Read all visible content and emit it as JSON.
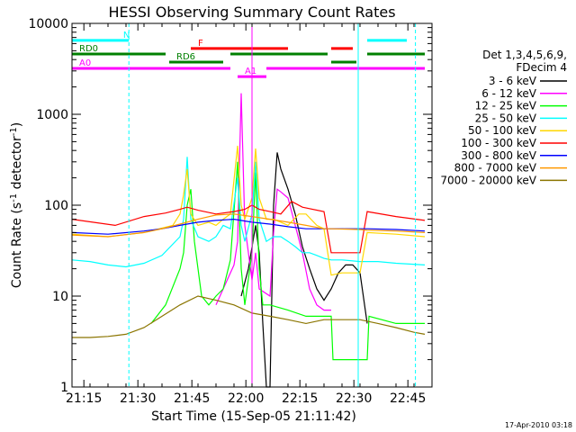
{
  "chart_data": {
    "type": "line",
    "title": "HESSI Observing Summary Count Rates",
    "xlabel": "Start Time (15-Sep-05 21:11:42)",
    "ylabel_main": "Count Rate (s",
    "ylabel_sup1": "-1",
    "ylabel_mid": " detector",
    "ylabel_sup2": "-1",
    "ylabel_end": ")",
    "y_scale": "log",
    "ylim": [
      1,
      10000
    ],
    "xlim_minutes": [
      0,
      100
    ],
    "x_ticks": [
      {
        "m": 3.3,
        "label": "21:15"
      },
      {
        "m": 18.3,
        "label": "21:30"
      },
      {
        "m": 33.3,
        "label": "21:45"
      },
      {
        "m": 48.3,
        "label": "22:00"
      },
      {
        "m": 63.3,
        "label": "22:15"
      },
      {
        "m": 78.3,
        "label": "22:30"
      },
      {
        "m": 93.3,
        "label": "22:45"
      }
    ],
    "y_ticks": [
      {
        "v": 1,
        "label": "1"
      },
      {
        "v": 10,
        "label": "10"
      },
      {
        "v": 100,
        "label": "100"
      },
      {
        "v": 1000,
        "label": "1000"
      },
      {
        "v": 10000,
        "label": "10000"
      }
    ],
    "legend_header": [
      "Det 1,3,4,5,6,9,",
      "FDecim 4"
    ],
    "legend_position": "right",
    "series": [
      {
        "name": "3 - 6 keV",
        "color": "#000000",
        "points": [
          [
            47,
            10
          ],
          [
            49,
            20
          ],
          [
            51,
            60
          ],
          [
            52,
            30
          ],
          [
            53,
            5
          ],
          [
            54,
            1
          ],
          [
            55,
            1
          ],
          [
            56,
            100
          ],
          [
            57,
            380
          ],
          [
            58,
            250
          ],
          [
            60,
            150
          ],
          [
            62,
            80
          ],
          [
            64,
            35
          ],
          [
            66,
            20
          ],
          [
            68,
            12
          ],
          [
            70,
            9
          ],
          [
            72,
            12
          ],
          [
            74,
            18
          ],
          [
            76,
            22
          ],
          [
            78,
            22
          ],
          [
            80,
            18
          ],
          [
            82,
            5
          ]
        ]
      },
      {
        "name": "6 - 12 keV",
        "color": "#ff00ff",
        "points": [
          [
            40,
            8
          ],
          [
            42,
            12
          ],
          [
            44,
            18
          ],
          [
            45,
            22
          ],
          [
            46,
            40
          ],
          [
            47,
            1700
          ],
          [
            48,
            60
          ],
          [
            49,
            30
          ],
          [
            50,
            15
          ],
          [
            51,
            30
          ],
          [
            52,
            12
          ],
          [
            55,
            10
          ],
          [
            56,
            50
          ],
          [
            57,
            150
          ],
          [
            58,
            140
          ],
          [
            60,
            120
          ],
          [
            62,
            60
          ],
          [
            64,
            30
          ],
          [
            66,
            12
          ],
          [
            68,
            8
          ],
          [
            70,
            7
          ],
          [
            72,
            7
          ]
        ]
      },
      {
        "name": "12 - 25 keV",
        "color": "#00ff00",
        "points": [
          [
            22,
            5
          ],
          [
            26,
            8
          ],
          [
            30,
            20
          ],
          [
            31,
            30
          ],
          [
            32,
            100
          ],
          [
            33,
            150
          ],
          [
            34,
            40
          ],
          [
            36,
            10
          ],
          [
            38,
            8
          ],
          [
            40,
            10
          ],
          [
            42,
            12
          ],
          [
            44,
            25
          ],
          [
            46,
            300
          ],
          [
            47,
            20
          ],
          [
            48,
            8
          ],
          [
            50,
            30
          ],
          [
            51,
            230
          ],
          [
            52,
            20
          ],
          [
            53,
            8
          ],
          [
            55,
            8
          ],
          [
            60,
            7
          ],
          [
            65,
            6
          ],
          [
            70,
            6
          ],
          [
            72,
            6
          ],
          [
            72.5,
            2
          ],
          [
            80,
            2
          ],
          [
            82,
            2
          ],
          [
            82.5,
            6
          ],
          [
            90,
            5
          ],
          [
            98,
            5
          ]
        ]
      },
      {
        "name": "25 - 50 keV",
        "color": "#00ffff",
        "points": [
          [
            0,
            25
          ],
          [
            5,
            24
          ],
          [
            10,
            22
          ],
          [
            15,
            21
          ],
          [
            20,
            23
          ],
          [
            25,
            28
          ],
          [
            30,
            45
          ],
          [
            31,
            70
          ],
          [
            32,
            340
          ],
          [
            33,
            70
          ],
          [
            35,
            45
          ],
          [
            38,
            40
          ],
          [
            40,
            45
          ],
          [
            42,
            60
          ],
          [
            44,
            55
          ],
          [
            46,
            200
          ],
          [
            47,
            60
          ],
          [
            48,
            40
          ],
          [
            50,
            80
          ],
          [
            51,
            300
          ],
          [
            52,
            70
          ],
          [
            54,
            40
          ],
          [
            56,
            45
          ],
          [
            58,
            45
          ],
          [
            60,
            40
          ],
          [
            62,
            35
          ],
          [
            64,
            30
          ],
          [
            66,
            30
          ],
          [
            68,
            28
          ],
          [
            70,
            26
          ],
          [
            72,
            25
          ],
          [
            75,
            25
          ],
          [
            80,
            24
          ],
          [
            85,
            24
          ],
          [
            90,
            23
          ],
          [
            98,
            22
          ]
        ]
      },
      {
        "name": "50 - 100 keV",
        "color": "#ffd700",
        "points": [
          [
            0,
            48
          ],
          [
            10,
            45
          ],
          [
            20,
            50
          ],
          [
            28,
            60
          ],
          [
            30,
            80
          ],
          [
            31,
            130
          ],
          [
            32,
            250
          ],
          [
            33,
            80
          ],
          [
            35,
            60
          ],
          [
            38,
            65
          ],
          [
            40,
            60
          ],
          [
            42,
            70
          ],
          [
            44,
            80
          ],
          [
            46,
            450
          ],
          [
            47,
            100
          ],
          [
            48,
            70
          ],
          [
            50,
            120
          ],
          [
            51,
            420
          ],
          [
            52,
            120
          ],
          [
            54,
            70
          ],
          [
            56,
            70
          ],
          [
            58,
            65
          ],
          [
            60,
            60
          ],
          [
            63,
            80
          ],
          [
            65,
            80
          ],
          [
            68,
            60
          ],
          [
            70,
            55
          ],
          [
            72,
            17
          ],
          [
            75,
            18
          ],
          [
            80,
            18
          ],
          [
            82,
            50
          ],
          [
            90,
            48
          ],
          [
            98,
            45
          ]
        ]
      },
      {
        "name": "100 - 300 keV",
        "color": "#ff0000",
        "points": [
          [
            0,
            70
          ],
          [
            12,
            60
          ],
          [
            20,
            75
          ],
          [
            26,
            82
          ],
          [
            30,
            90
          ],
          [
            32,
            95
          ],
          [
            35,
            88
          ],
          [
            40,
            80
          ],
          [
            45,
            85
          ],
          [
            48,
            90
          ],
          [
            50,
            100
          ],
          [
            52,
            90
          ],
          [
            55,
            85
          ],
          [
            58,
            80
          ],
          [
            61,
            110
          ],
          [
            64,
            95
          ],
          [
            70,
            85
          ],
          [
            72,
            30
          ],
          [
            80,
            30
          ],
          [
            82,
            85
          ],
          [
            90,
            75
          ],
          [
            98,
            68
          ]
        ]
      },
      {
        "name": "300 - 800 keV",
        "color": "#0000ff",
        "points": [
          [
            0,
            50
          ],
          [
            10,
            48
          ],
          [
            20,
            52
          ],
          [
            25,
            55
          ],
          [
            30,
            60
          ],
          [
            35,
            65
          ],
          [
            40,
            68
          ],
          [
            45,
            70
          ],
          [
            50,
            65
          ],
          [
            55,
            62
          ],
          [
            60,
            58
          ],
          [
            65,
            55
          ],
          [
            70,
            55
          ],
          [
            72,
            55
          ],
          [
            80,
            55
          ],
          [
            82,
            55
          ],
          [
            90,
            54
          ],
          [
            98,
            52
          ]
        ]
      },
      {
        "name": "800 - 7000 keV",
        "color": "#ff9900",
        "points": [
          [
            0,
            47
          ],
          [
            10,
            45
          ],
          [
            20,
            50
          ],
          [
            25,
            55
          ],
          [
            30,
            62
          ],
          [
            35,
            70
          ],
          [
            40,
            78
          ],
          [
            45,
            80
          ],
          [
            50,
            75
          ],
          [
            55,
            70
          ],
          [
            60,
            65
          ],
          [
            65,
            60
          ],
          [
            70,
            55
          ],
          [
            72,
            55
          ],
          [
            80,
            54
          ],
          [
            82,
            53
          ],
          [
            90,
            52
          ],
          [
            98,
            50
          ]
        ]
      },
      {
        "name": "7000 - 20000 keV",
        "color": "#8b7500",
        "points": [
          [
            0,
            3.5
          ],
          [
            5,
            3.5
          ],
          [
            10,
            3.6
          ],
          [
            15,
            3.8
          ],
          [
            20,
            4.5
          ],
          [
            25,
            6
          ],
          [
            30,
            8
          ],
          [
            35,
            10
          ],
          [
            40,
            9
          ],
          [
            45,
            8
          ],
          [
            50,
            6.5
          ],
          [
            55,
            6
          ],
          [
            60,
            5.5
          ],
          [
            65,
            5
          ],
          [
            70,
            5.5
          ],
          [
            75,
            5.5
          ],
          [
            80,
            5.5
          ],
          [
            85,
            5
          ],
          [
            90,
            4.5
          ],
          [
            95,
            4
          ],
          [
            98,
            3.8
          ]
        ]
      }
    ],
    "flags": [
      {
        "label": "N",
        "color": "#00ffff",
        "y": 6500,
        "segments": [
          [
            0,
            15.8
          ],
          [
            82,
            93
          ]
        ]
      },
      {
        "label": "F",
        "color": "#ff0000",
        "y": 5300,
        "segments": [
          [
            33,
            60
          ],
          [
            72,
            78
          ]
        ]
      },
      {
        "label": "RD0",
        "color": "#008000",
        "y": 4600,
        "segments": [
          [
            0,
            26
          ],
          [
            44,
            71
          ],
          [
            82,
            98
          ]
        ]
      },
      {
        "label": "RD6",
        "color": "#008000",
        "y": 3750,
        "segments": [
          [
            27,
            42
          ],
          [
            72,
            79
          ]
        ]
      },
      {
        "label": "A0",
        "color": "#ff00ff",
        "y": 3200,
        "segments": [
          [
            0,
            44
          ],
          [
            54,
            98
          ]
        ]
      },
      {
        "label": "A1",
        "color": "#ff00ff",
        "y": 2600,
        "segments": [
          [
            46,
            54
          ]
        ]
      }
    ],
    "vlines": [
      {
        "m": 0,
        "color": "#00ffff",
        "dashed": false
      },
      {
        "m": 15.8,
        "color": "#00ffff",
        "dashed": true
      },
      {
        "m": 79.5,
        "color": "#00ffff",
        "dashed": false
      },
      {
        "m": 95.4,
        "color": "#00ffff",
        "dashed": true
      },
      {
        "m": 50.0,
        "color": "#ff00ff",
        "dashed": false
      }
    ]
  },
  "footer_timestamp": "17-Apr-2010 03:18"
}
